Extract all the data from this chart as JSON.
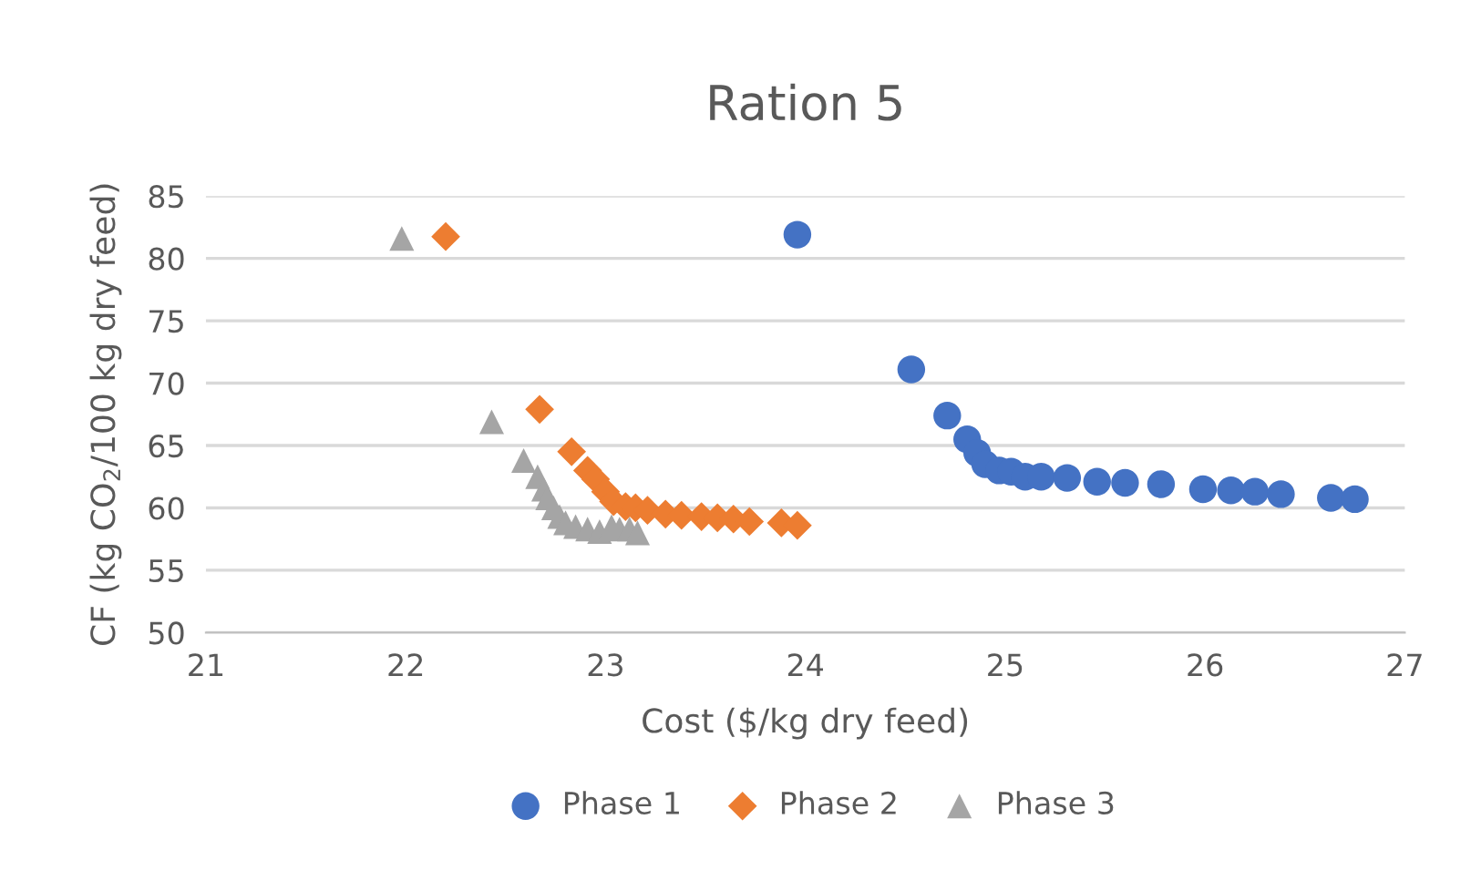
{
  "chart_data": {
    "type": "scatter",
    "title": "Ration 5",
    "xlabel": "Cost ($/kg dry feed)",
    "ylabel": "CF (kg CO$_{2}$/100 kg dry feed)",
    "xlim": [
      21,
      27
    ],
    "xticks": [
      21,
      22,
      23,
      24,
      25,
      26,
      27
    ],
    "ylim": [
      50,
      85
    ],
    "yticks": [
      50,
      55,
      60,
      65,
      70,
      75,
      80,
      85
    ],
    "grid": "y",
    "legend": "bottom",
    "series": [
      {
        "name": "Phase 1",
        "color": "#4472c4",
        "marker": "circle",
        "x": [
          23.96,
          24.53,
          24.71,
          24.81,
          24.86,
          24.9,
          24.97,
          25.03,
          25.1,
          25.18,
          25.31,
          25.46,
          25.6,
          25.78,
          25.99,
          26.13,
          26.25,
          26.38,
          26.63,
          26.75
        ],
        "values": [
          81.9,
          71.1,
          67.4,
          65.5,
          64.4,
          63.5,
          63.0,
          62.9,
          62.5,
          62.5,
          62.4,
          62.1,
          62.0,
          61.9,
          61.5,
          61.4,
          61.3,
          61.1,
          60.8,
          60.7
        ]
      },
      {
        "name": "Phase 2",
        "color": "#ed7d31",
        "marker": "diamond",
        "x": [
          22.2,
          22.67,
          22.83,
          22.91,
          22.95,
          23.0,
          23.04,
          23.1,
          23.15,
          23.21,
          23.3,
          23.38,
          23.48,
          23.56,
          23.64,
          23.72,
          23.88,
          23.96
        ],
        "values": [
          81.75,
          67.9,
          64.5,
          63.0,
          62.3,
          61.3,
          60.5,
          60.1,
          60.0,
          59.8,
          59.5,
          59.4,
          59.3,
          59.2,
          59.1,
          58.9,
          58.8,
          58.6
        ]
      },
      {
        "name": "Phase 3",
        "color": "#a5a5a5",
        "marker": "triangle",
        "x": [
          21.98,
          22.43,
          22.59,
          22.66,
          22.69,
          22.71,
          22.74,
          22.77,
          22.8,
          22.85,
          22.91,
          22.97,
          23.03,
          23.07,
          23.12,
          23.16
        ],
        "values": [
          81.6,
          66.9,
          63.8,
          62.5,
          61.5,
          60.8,
          60.0,
          59.3,
          58.8,
          58.5,
          58.3,
          58.1,
          58.5,
          58.3,
          58.3,
          58.0
        ]
      }
    ]
  }
}
